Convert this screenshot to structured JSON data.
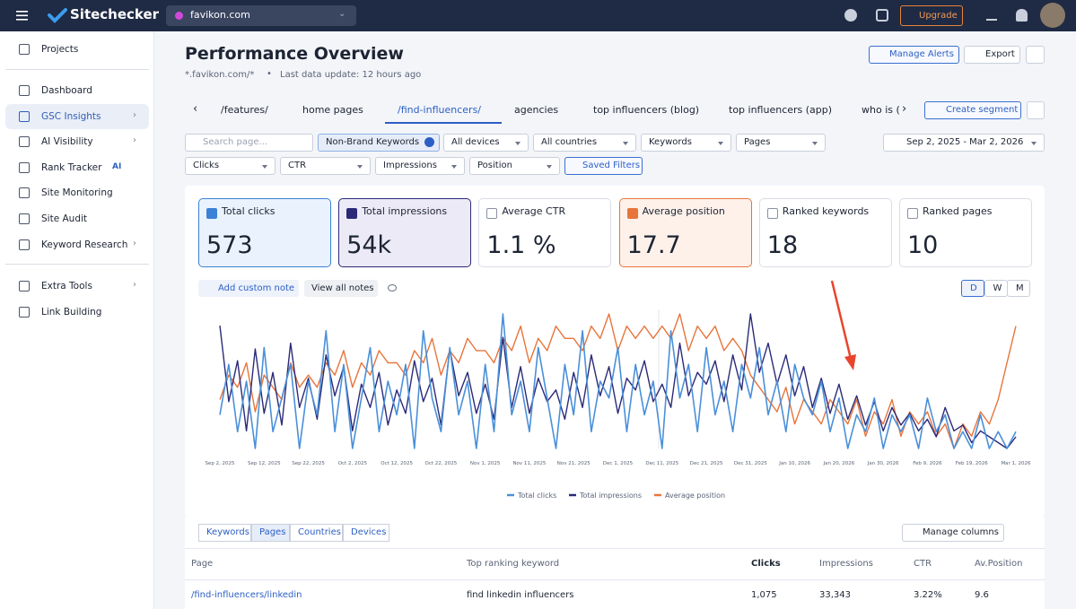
{
  "header": {
    "brand": "Sitechecker",
    "domain": "favikon.com",
    "upgrade": "Upgrade"
  },
  "sidebar": {
    "items": [
      "Projects",
      "Dashboard",
      "GSC Insights",
      "AI Visibility",
      "Rank Tracker",
      "Site Monitoring",
      "Site Audit",
      "Keyword Research",
      "Extra Tools",
      "Link Building"
    ],
    "badge": "AI"
  },
  "page": {
    "title": "Performance Overview",
    "scope": "*.favikon.com/*",
    "update": "Last data update: 12 hours ago",
    "buttons": [
      "Manage Alerts",
      "Export"
    ]
  },
  "segments": {
    "tabs": [
      "/features/",
      "home pages",
      "/find-influencers/",
      "agencies",
      "top influencers (blog)",
      "top influencers (app)",
      "who is ("
    ],
    "active": 2,
    "create": "Create segment"
  },
  "filters": {
    "search_placeholder": "Search page...",
    "row1": [
      "Non-Brand Keywords",
      "All devices",
      "All countries",
      "Keywords",
      "Pages"
    ],
    "date": "Sep 2, 2025 - Mar 2, 2026",
    "row2": [
      "Clicks",
      "CTR",
      "Impressions",
      "Position"
    ],
    "saved": "Saved Filters"
  },
  "metrics": [
    {
      "label": "Total clicks",
      "value": "573",
      "checked": true,
      "color": "#3b82d6"
    },
    {
      "label": "Total impressions",
      "value": "54k",
      "checked": true,
      "color": "#2b2a78"
    },
    {
      "label": "Average CTR",
      "value": "1.1 %",
      "checked": false
    },
    {
      "label": "Average position",
      "value": "17.7",
      "checked": true,
      "color": "#e8743b"
    },
    {
      "label": "Ranked keywords",
      "value": "18",
      "checked": false
    },
    {
      "label": "Ranked pages",
      "value": "10",
      "checked": false
    }
  ],
  "notes": {
    "add": "Add custom note",
    "view": "View all notes"
  },
  "granularity": {
    "options": [
      "D",
      "W",
      "M"
    ],
    "active": 0
  },
  "chart_data": {
    "type": "line",
    "categories": [
      "Sep 2, 2025",
      null,
      null,
      null,
      null,
      "Sep 12, 2025",
      null,
      null,
      null,
      null,
      "Sep 22, 2025",
      null,
      null,
      null,
      null,
      "Oct 2, 2025",
      null,
      null,
      null,
      null,
      "Oct 12, 2025",
      null,
      null,
      null,
      null,
      "Oct 22, 2025",
      null,
      null,
      null,
      null,
      "Nov 1, 2025",
      null,
      null,
      null,
      null,
      "Nov 11, 2025",
      null,
      null,
      null,
      null,
      "Nov 21, 2025",
      null,
      null,
      null,
      null,
      "Dec 1, 2025",
      null,
      null,
      null,
      null,
      "Dec 11, 2025",
      null,
      null,
      null,
      null,
      "Dec 21, 2025",
      null,
      null,
      null,
      null,
      "Dec 31, 2025",
      null,
      null,
      null,
      null,
      "Jan 10, 2026",
      null,
      null,
      null,
      null,
      "Jan 20, 2026",
      null,
      null,
      null,
      null,
      "Jan 30, 2026",
      null,
      null,
      null,
      null,
      "Feb 9, 2026",
      null,
      null,
      null,
      null,
      "Feb 19, 2026",
      null,
      null,
      null,
      null,
      "Mar 1, 2026"
    ],
    "series": [
      {
        "name": "Total clicks",
        "color": "#4a90d9",
        "values": [
          3,
          6,
          2,
          5,
          1,
          7,
          2,
          4,
          6,
          1,
          5,
          3,
          8,
          2,
          6,
          1,
          4,
          7,
          2,
          5,
          3,
          6,
          1,
          8,
          4,
          2,
          7,
          3,
          5,
          1,
          6,
          2,
          9,
          3,
          5,
          2,
          7,
          4,
          1,
          6,
          3,
          8,
          2,
          5,
          4,
          7,
          2,
          6,
          3,
          5,
          1,
          8,
          4,
          6,
          2,
          7,
          3,
          5,
          2,
          6,
          4,
          7,
          3,
          5,
          2,
          6,
          4,
          3,
          5,
          2,
          4,
          1,
          3,
          2,
          4,
          1,
          3,
          2,
          3,
          1,
          4,
          2,
          3,
          1,
          2,
          1,
          3,
          1,
          2,
          1,
          2
        ]
      },
      {
        "name": "Total impressions",
        "color": "#2b2a78",
        "values": [
          380,
          250,
          320,
          200,
          340,
          230,
          300,
          210,
          350,
          240,
          290,
          220,
          330,
          260,
          310,
          200,
          280,
          240,
          300,
          210,
          270,
          230,
          320,
          250,
          290,
          210,
          340,
          260,
          300,
          230,
          280,
          220,
          360,
          240,
          310,
          230,
          290,
          250,
          270,
          220,
          300,
          240,
          330,
          260,
          310,
          230,
          290,
          270,
          320,
          250,
          280,
          240,
          350,
          260,
          300,
          280,
          320,
          250,
          330,
          270,
          400,
          300,
          350,
          280,
          330,
          260,
          310,
          240,
          290,
          230,
          280,
          220,
          260,
          210,
          250,
          200,
          240,
          210,
          230,
          200,
          220,
          190,
          240,
          200,
          210,
          180,
          200,
          190,
          180,
          170,
          190
        ]
      },
      {
        "name": "Average position",
        "color": "#e8743b",
        "values": [
          16,
          18,
          17,
          19,
          15,
          18,
          17,
          16,
          19,
          17,
          18,
          17,
          19,
          18,
          20,
          17,
          19,
          18,
          20,
          19,
          19,
          18,
          20,
          19,
          21,
          18,
          20,
          19,
          21,
          20,
          20,
          19,
          21,
          20,
          22,
          19,
          21,
          20,
          22,
          21,
          21,
          20,
          22,
          21,
          23,
          20,
          22,
          21,
          22,
          21,
          22,
          21,
          23,
          20,
          22,
          21,
          22,
          20,
          21,
          20,
          18,
          17,
          16,
          15,
          17,
          14,
          16,
          15,
          14,
          16,
          15,
          14,
          16,
          13,
          15,
          14,
          16,
          13,
          15,
          14,
          15,
          13,
          14,
          12,
          14,
          13,
          15,
          14,
          16,
          19,
          22
        ]
      }
    ]
  },
  "table": {
    "tabs": [
      "Keywords",
      "Pages",
      "Countries",
      "Devices"
    ],
    "active": 1,
    "manage": "Manage columns",
    "columns": [
      "Page",
      "Top ranking keyword",
      "Clicks",
      "Impressions",
      "CTR",
      "Av.Position"
    ],
    "sorted": 2,
    "rows": [
      [
        "/find-influencers/linkedin",
        "find linkedin influencers",
        "1,075",
        "33,343",
        "3.22%",
        "9.6"
      ]
    ]
  }
}
